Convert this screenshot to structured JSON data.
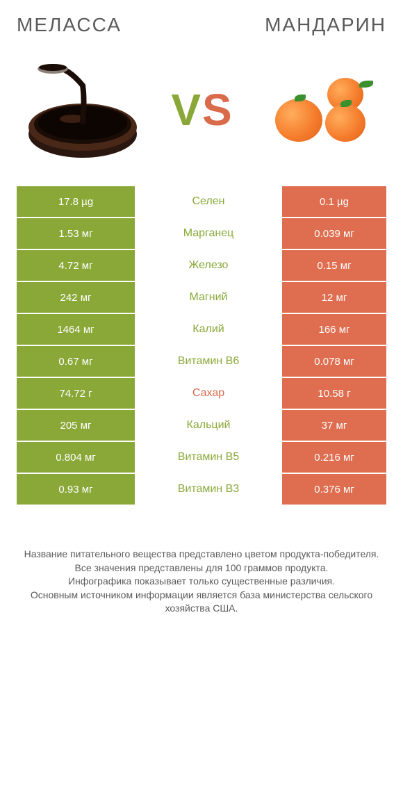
{
  "header": {
    "left_title": "МЕЛАССА",
    "right_title": "MАНДАРИН",
    "vs": "VS"
  },
  "colors": {
    "left_bar": "#89a838",
    "right_bar": "#df6d4f",
    "label_default": "#89a838",
    "label_alt": "#d96a4a",
    "footer_text": "#5a5a5a"
  },
  "rows": [
    {
      "left": "17.8 µg",
      "label": "Селен",
      "right": "0.1 µg",
      "label_color": "default"
    },
    {
      "left": "1.53 мг",
      "label": "Марганец",
      "right": "0.039 мг",
      "label_color": "default"
    },
    {
      "left": "4.72 мг",
      "label": "Железо",
      "right": "0.15 мг",
      "label_color": "default"
    },
    {
      "left": "242 мг",
      "label": "Магний",
      "right": "12 мг",
      "label_color": "default"
    },
    {
      "left": "1464 мг",
      "label": "Калий",
      "right": "166 мг",
      "label_color": "default"
    },
    {
      "left": "0.67 мг",
      "label": "Витамин B6",
      "right": "0.078 мг",
      "label_color": "default"
    },
    {
      "left": "74.72 г",
      "label": "Сахар",
      "right": "10.58 г",
      "label_color": "alt"
    },
    {
      "left": "205 мг",
      "label": "Кальций",
      "right": "37 мг",
      "label_color": "default"
    },
    {
      "left": "0.804 мг",
      "label": "Витамин B5",
      "right": "0.216 мг",
      "label_color": "default"
    },
    {
      "left": "0.93 мг",
      "label": "Витамин B3",
      "right": "0.376 мг",
      "label_color": "default"
    }
  ],
  "footer_lines": [
    "Название питательного вещества представлено цветом продукта-победителя.",
    "Все значения представлены для 100 граммов продукта.",
    "Инфографика показывает только существенные различия.",
    "Основным источником информации является база министерства сельского хозяйства США."
  ]
}
